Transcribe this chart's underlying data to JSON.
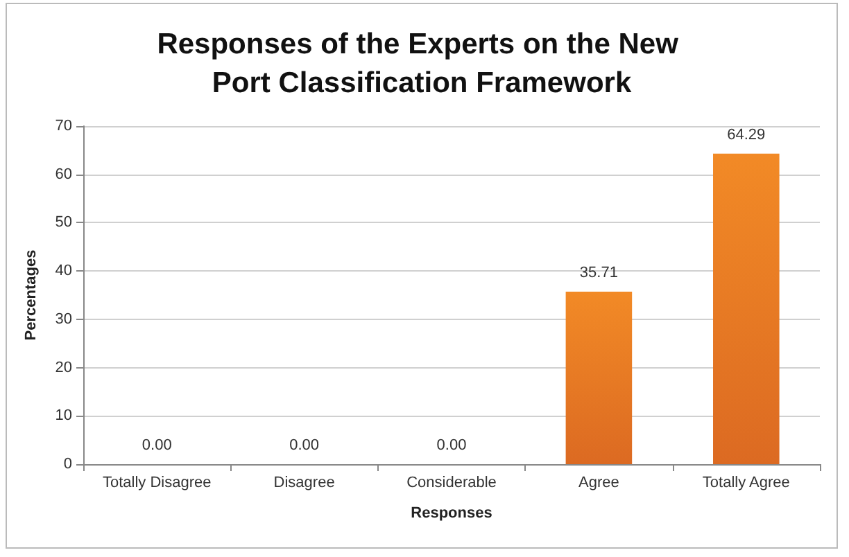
{
  "chart_data": {
    "type": "bar",
    "title": "Responses of the Experts on the New Port Classification Framework",
    "xlabel": "Responses",
    "ylabel": "Percentages",
    "categories": [
      "Totally Disagree",
      "Disagree",
      "Considerable",
      "Agree",
      "Totally Agree"
    ],
    "values": [
      0,
      0,
      0,
      35.71,
      64.29
    ],
    "value_labels": [
      "0.00",
      "0.00",
      "0.00",
      "35.71",
      "64.29"
    ],
    "color": "#f28a26",
    "ylim": [
      0,
      70
    ],
    "yticks": [
      0,
      10,
      20,
      30,
      40,
      50,
      60,
      70
    ],
    "grid": "y"
  }
}
